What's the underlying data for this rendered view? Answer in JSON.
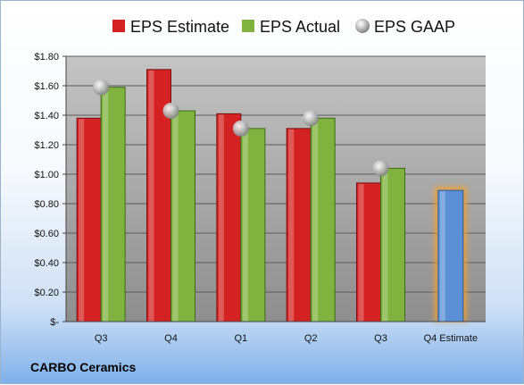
{
  "company": "CARBO Ceramics",
  "chart_data": {
    "type": "bar",
    "categories": [
      "Q3",
      "Q4",
      "Q1",
      "Q2",
      "Q3",
      "Q4 Estimate"
    ],
    "series": [
      {
        "name": "EPS Estimate",
        "color": "#d42222",
        "values": [
          1.38,
          1.71,
          1.41,
          1.31,
          0.94,
          null
        ]
      },
      {
        "name": "EPS Actual",
        "color": "#7fb23e",
        "values": [
          1.59,
          1.43,
          1.31,
          1.38,
          1.04,
          null
        ]
      },
      {
        "name": "EPS GAAP",
        "marker": "sphere",
        "color": "#b8b8b8",
        "values": [
          1.59,
          1.43,
          1.31,
          1.38,
          1.04,
          null
        ]
      }
    ],
    "estimate_bar": {
      "category": "Q4 Estimate",
      "value": 0.89,
      "color": "#5b8fd6",
      "glow_color": "#f0a030"
    },
    "ylim": [
      0,
      1.8
    ],
    "yticks": [
      0,
      0.2,
      0.4,
      0.6,
      0.8,
      1.0,
      1.2,
      1.4,
      1.6,
      1.8
    ],
    "ytick_labels": [
      "$-",
      "$0.20",
      "$0.40",
      "$0.60",
      "$0.80",
      "$1.00",
      "$1.20",
      "$1.40",
      "$1.60",
      "$1.80"
    ],
    "legend_position": "top",
    "grid": true
  }
}
